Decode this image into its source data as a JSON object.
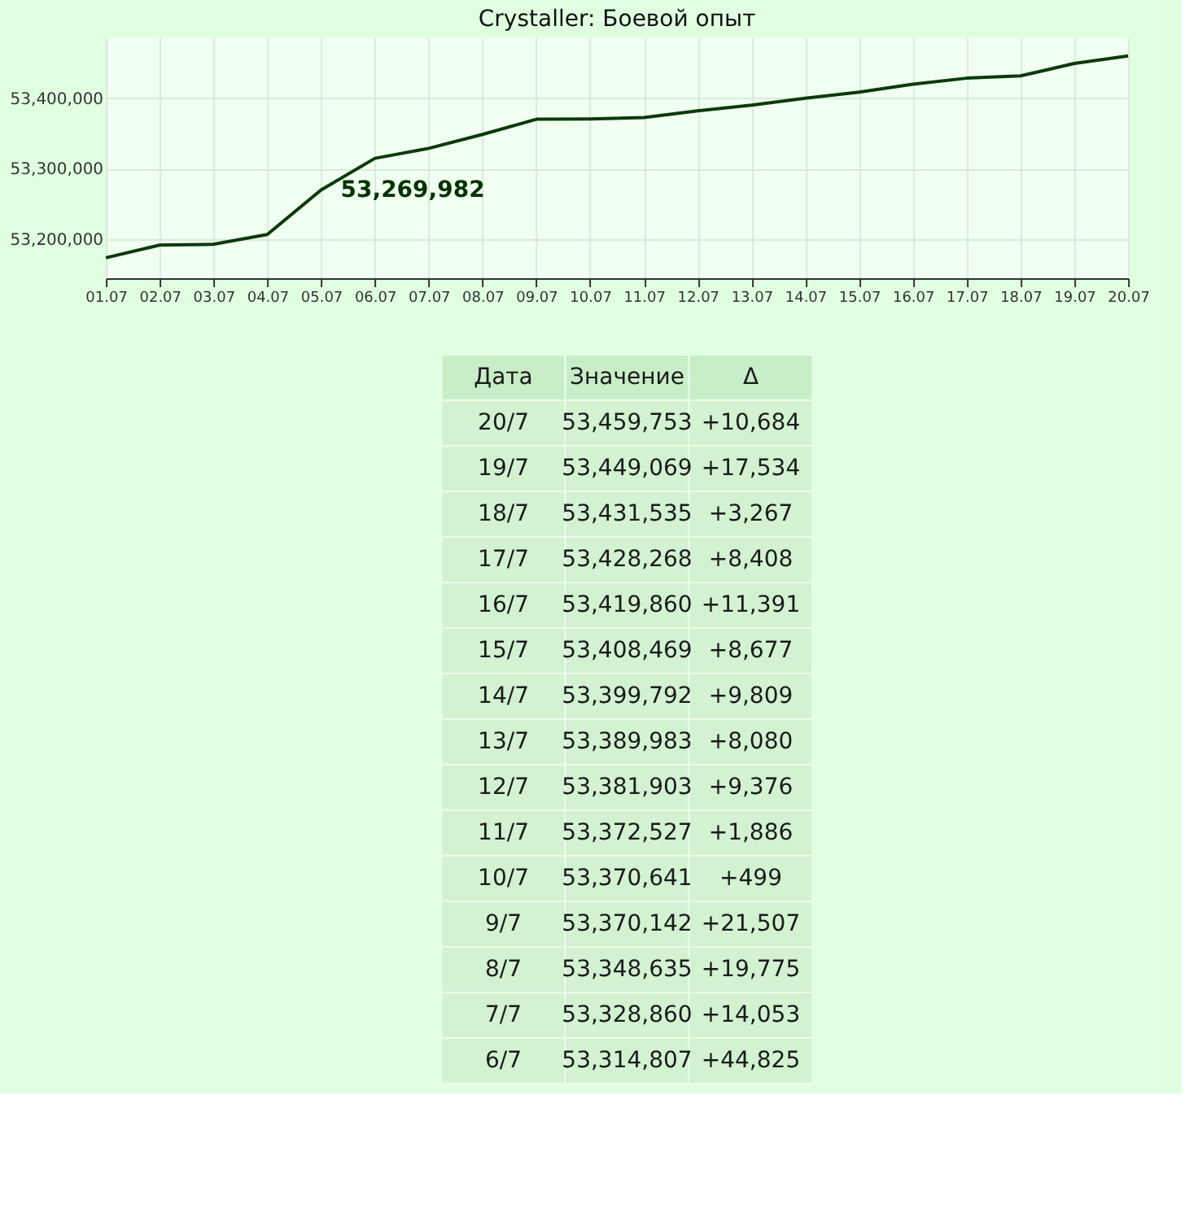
{
  "chart_data": [
    {
      "type": "line",
      "title": "Crystaller: Боевой опыт",
      "categories": [
        "01.07",
        "02.07",
        "03.07",
        "04.07",
        "05.07",
        "06.07",
        "07.07",
        "08.07",
        "09.07",
        "10.07",
        "11.07",
        "12.07",
        "13.07",
        "14.07",
        "15.07",
        "16.07",
        "17.07",
        "18.07",
        "19.07",
        "20.07"
      ],
      "series": [
        {
          "color": "#0a3a0a",
          "values": [
            53174000,
            53192000,
            53193000,
            53207000,
            53269982,
            53314807,
            53328860,
            53348635,
            53370142,
            53370641,
            53372527,
            53381903,
            53389983,
            53399792,
            53408469,
            53419860,
            53428268,
            53431535,
            53449069,
            53459753
          ]
        }
      ],
      "ylim": [
        53145000,
        53486000
      ],
      "yticks": [
        {
          "value": 53200000,
          "label": "53,200,000"
        },
        {
          "value": 53300000,
          "label": "53,300,000"
        },
        {
          "value": 53400000,
          "label": "53,400,000"
        }
      ],
      "grid": true,
      "marker": "none",
      "line_style": "solid",
      "annotations": [
        {
          "text": "53,269,982",
          "x": "05.07",
          "y": 53269982
        }
      ]
    },
    {
      "type": "other",
      "categories": [
        "Дата",
        "Значение",
        "Δ"
      ],
      "cell_labels": [
        [
          "20/7",
          "53,459,753",
          "+10,684"
        ],
        [
          "19/7",
          "53,449,069",
          "+17,534"
        ],
        [
          "18/7",
          "53,431,535",
          "+3,267"
        ],
        [
          "17/7",
          "53,428,268",
          "+8,408"
        ],
        [
          "16/7",
          "53,419,860",
          "+11,391"
        ],
        [
          "15/7",
          "53,408,469",
          "+8,677"
        ],
        [
          "14/7",
          "53,399,792",
          "+9,809"
        ],
        [
          "13/7",
          "53,389,983",
          "+8,080"
        ],
        [
          "12/7",
          "53,381,903",
          "+9,376"
        ],
        [
          "11/7",
          "53,372,527",
          "+1,886"
        ],
        [
          "10/7",
          "53,370,641",
          "+499"
        ],
        [
          "9/7",
          "53,370,142",
          "+21,507"
        ],
        [
          "8/7",
          "53,348,635",
          "+19,775"
        ],
        [
          "7/7",
          "53,328,860",
          "+14,053"
        ],
        [
          "6/7",
          "53,314,807",
          "+44,825"
        ]
      ]
    }
  ]
}
